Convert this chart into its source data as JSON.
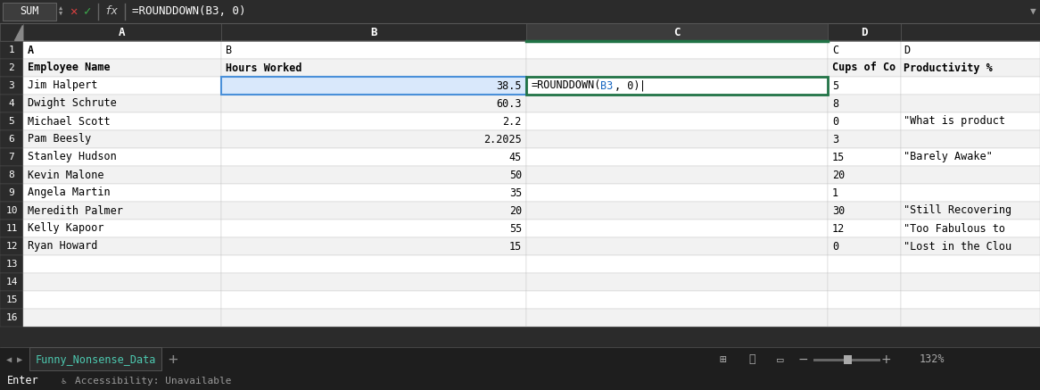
{
  "formula_bar_text": "=ROUNDDOWN(B3, 0)",
  "cell_name": "SUM",
  "rows": [
    [
      "A",
      "B",
      "",
      "C",
      "D"
    ],
    [
      "Employee Name",
      "Hours Worked",
      "",
      "Cups of Co",
      "Productivity %"
    ],
    [
      "Jim Halpert",
      "38.5",
      "=ROUNDDOWN(B3, 0)",
      "5",
      ""
    ],
    [
      "Dwight Schrute",
      "60.3",
      "",
      "8",
      ""
    ],
    [
      "Michael Scott",
      "2.2",
      "",
      "0",
      "\"What is product"
    ],
    [
      "Pam Beesly",
      "2.2025",
      "",
      "3",
      ""
    ],
    [
      "Stanley Hudson",
      "45",
      "",
      "15",
      "\"Barely Awake\""
    ],
    [
      "Kevin Malone",
      "50",
      "",
      "20",
      ""
    ],
    [
      "Angela Martin",
      "35",
      "",
      "1",
      ""
    ],
    [
      "Meredith Palmer",
      "20",
      "",
      "30",
      "\"Still Recovering"
    ],
    [
      "Kelly Kapoor",
      "55",
      "",
      "12",
      "\"Too Fabulous to"
    ],
    [
      "Ryan Howard",
      "15",
      "",
      "0",
      "\"Lost in the Clou"
    ],
    [
      "",
      "",
      "",
      "",
      ""
    ],
    [
      "",
      "",
      "",
      "",
      ""
    ],
    [
      "",
      "",
      "",
      "",
      ""
    ],
    [
      "",
      "",
      "",
      "",
      ""
    ]
  ],
  "tab_text": "Funny_Nonsense_Data",
  "status_text": "Enter",
  "zoom_text": "132%",
  "bottom_bar_text": "Accessibility: Unavailable",
  "dark_bg": "#2b2b2b",
  "darker_bg": "#1e1e1e",
  "formula_bar_bg": "#2b2b2b",
  "col_header_bg": "#2b2b2b",
  "col_header_c_bg": "#3c3c3c",
  "col_header_text": "#ffffff",
  "row_num_bg": "#2b2b2b",
  "row_num_text": "#ffffff",
  "grid_line": "#c8c8c8",
  "white": "#ffffff",
  "alt_row": "#f2f2f2",
  "selected_b_bg": "#d9e8fb",
  "selected_b_border": "#4a90d9",
  "selected_c_bg": "#ffffff",
  "selected_c_border": "#217346",
  "tab_active_bg": "#2b2b2b",
  "tab_active_text": "#4dc9b0",
  "tab_bar_bg": "#1e1e1e",
  "status_bar_bg": "#1e1e1e",
  "formula_text": "#ffffff",
  "data_text": "#000000",
  "b3_ref_color": "#1565c0",
  "green_header_line": "#217346"
}
